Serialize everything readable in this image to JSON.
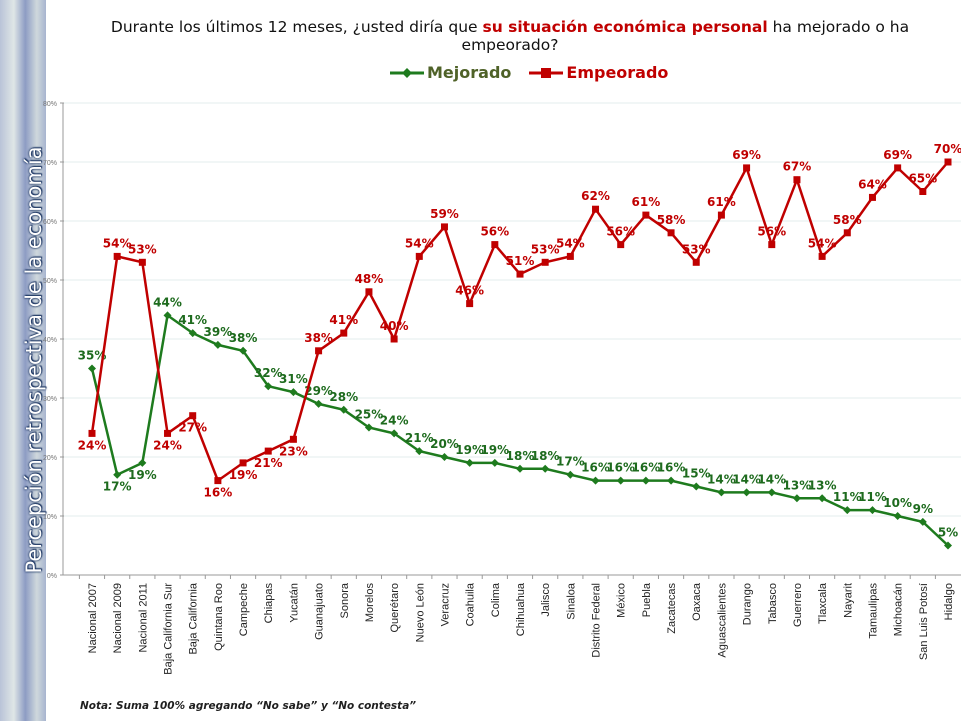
{
  "chart_data": {
    "type": "line",
    "title_parts": [
      "Durante los últimos 12 meses, ¿usted diría que ",
      "su situación económica personal",
      " ha mejorado o ha empeorado?"
    ],
    "ylabel": "Percepción retrospectiva de la economía",
    "ylim": [
      0,
      80
    ],
    "yticks": [
      "0%",
      "10%",
      "20%",
      "30%",
      "40%",
      "50%",
      "60%",
      "70%",
      "80%"
    ],
    "grid": true,
    "legend_position": "top",
    "categories": [
      "Nacional 2007",
      "Nacional 2009",
      "Nacional 2011",
      "Baja California Sur",
      "Baja California",
      "Quintana Roo",
      "Campeche",
      "Chiapas",
      "Yucatán",
      "Guanajuato",
      "Sonora",
      "Morelos",
      "Querétaro",
      "Nuevo León",
      "Veracruz",
      "Coahuila",
      "Colima",
      "Chihuahua",
      "Jalisco",
      "Sinaloa",
      "Distrito Federal",
      "México",
      "Puebla",
      "Zacatecas",
      "Oaxaca",
      "Aguascalientes",
      "Durango",
      "Tabasco",
      "Guerrero",
      "Tlaxcala",
      "Nayarit",
      "Tamaulipas",
      "Michoacán",
      "San Luis Potosí",
      "Hidalgo"
    ],
    "series": [
      {
        "name": "Mejorado",
        "color": "#1e7b1e",
        "marker": "diamond",
        "values": [
          35,
          17,
          19,
          44,
          41,
          39,
          38,
          32,
          31,
          29,
          28,
          25,
          24,
          21,
          20,
          19,
          19,
          18,
          18,
          17,
          16,
          16,
          16,
          16,
          15,
          14,
          14,
          14,
          13,
          13,
          11,
          11,
          10,
          9,
          5
        ]
      },
      {
        "name": "Empeorado",
        "color": "#c00000",
        "marker": "square",
        "values": [
          24,
          54,
          53,
          24,
          27,
          16,
          19,
          21,
          23,
          38,
          41,
          48,
          40,
          54,
          59,
          46,
          56,
          51,
          53,
          54,
          62,
          56,
          61,
          58,
          53,
          61,
          69,
          56,
          67,
          54,
          58,
          64,
          69,
          65,
          70
        ]
      }
    ]
  },
  "note": "Nota: Suma 100% agregando “No sabe” y “No contesta”"
}
